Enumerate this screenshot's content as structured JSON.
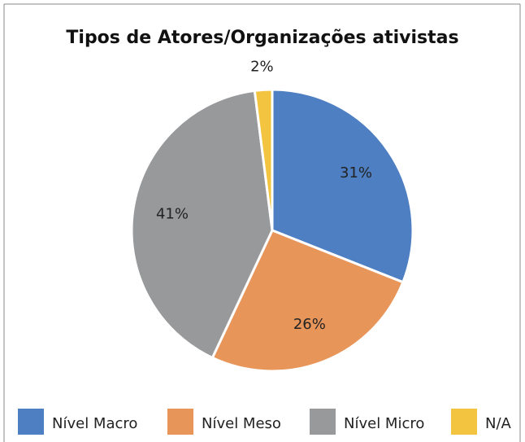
{
  "chart_data": {
    "type": "pie",
    "title": "Tipos de Atores/Organizações ativistas",
    "categories": [
      "Nível Macro",
      "Nível Meso",
      "Nível Micro",
      "N/A"
    ],
    "values": [
      31,
      26,
      41,
      2
    ],
    "value_labels": [
      "31%",
      "26%",
      "41%",
      "2%"
    ],
    "colors": [
      "#4e7fc2",
      "#e8955a",
      "#98999b",
      "#f2c440"
    ],
    "legend": "bottom"
  }
}
